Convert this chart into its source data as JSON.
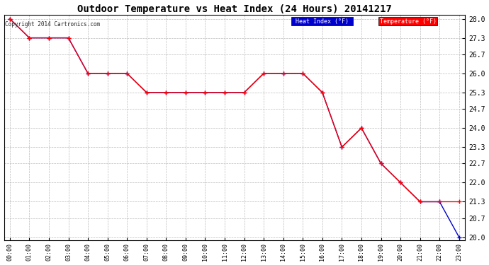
{
  "title": "Outdoor Temperature vs Heat Index (24 Hours) 20141217",
  "copyright_text": "Copyright 2014 Cartronics.com",
  "x_labels": [
    "00:00",
    "01:00",
    "02:00",
    "03:00",
    "04:00",
    "05:00",
    "06:00",
    "07:00",
    "08:00",
    "09:00",
    "10:00",
    "11:00",
    "12:00",
    "13:00",
    "14:00",
    "15:00",
    "16:00",
    "17:00",
    "18:00",
    "19:00",
    "20:00",
    "21:00",
    "22:00",
    "23:00"
  ],
  "temperature": [
    28.0,
    27.3,
    27.3,
    27.3,
    26.0,
    26.0,
    26.0,
    25.3,
    25.3,
    25.3,
    25.3,
    25.3,
    25.3,
    26.0,
    26.0,
    26.0,
    25.3,
    23.3,
    24.0,
    22.7,
    22.0,
    21.3,
    21.3,
    21.3
  ],
  "heat_index": [
    28.0,
    27.3,
    27.3,
    27.3,
    26.0,
    26.0,
    26.0,
    25.3,
    25.3,
    25.3,
    25.3,
    25.3,
    25.3,
    26.0,
    26.0,
    26.0,
    25.3,
    23.3,
    24.0,
    22.7,
    22.0,
    21.3,
    21.3,
    20.0
  ],
  "ylim_min": 20.0,
  "ylim_max": 28.0,
  "y_ticks": [
    20.0,
    20.7,
    21.3,
    22.0,
    22.7,
    23.3,
    24.0,
    24.7,
    25.3,
    26.0,
    26.7,
    27.3,
    28.0
  ],
  "temp_color": "#ff0000",
  "heat_index_color": "#0000cd",
  "bg_color": "#ffffff",
  "grid_color": "#bbbbbb",
  "title_fontsize": 10,
  "legend_heat_index_bg": "#0000cd",
  "legend_temp_bg": "#ff0000",
  "legend_text_color": "#ffffff"
}
